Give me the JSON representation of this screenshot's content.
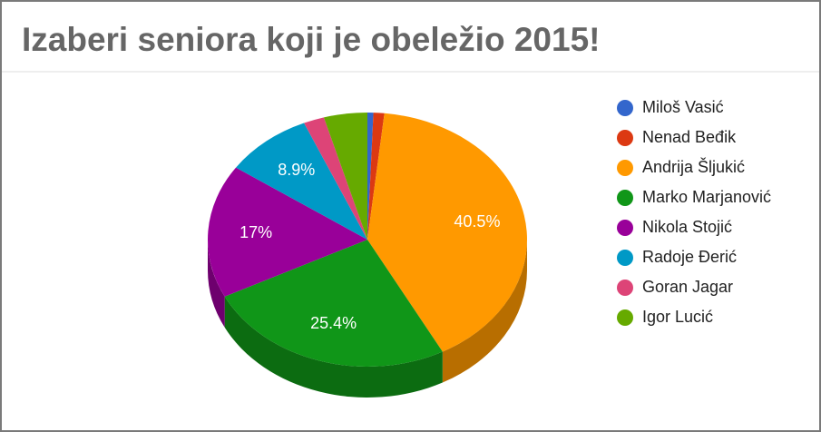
{
  "chart_data": {
    "type": "pie",
    "title": "Izaberi seniora koji je obeležio 2015!",
    "categories": [
      "Miloš Vasić",
      "Nenad Beđik",
      "Andrija Šljukić",
      "Marko Marjanović",
      "Nikola Stojić",
      "Radoje Đerić",
      "Goran Jagar",
      "Igor Lucić"
    ],
    "values": [
      0.6,
      1.1,
      40.5,
      25.4,
      17,
      8.9,
      2.1,
      4.4
    ],
    "value_labels": [
      null,
      null,
      "40.5%",
      "25.4%",
      "17%",
      "8.9%",
      null,
      null
    ],
    "colors": [
      "#3366cc",
      "#dc3912",
      "#ff9900",
      "#109618",
      "#990099",
      "#0099c6",
      "#dd4477",
      "#66aa00"
    ],
    "legend": "right"
  }
}
